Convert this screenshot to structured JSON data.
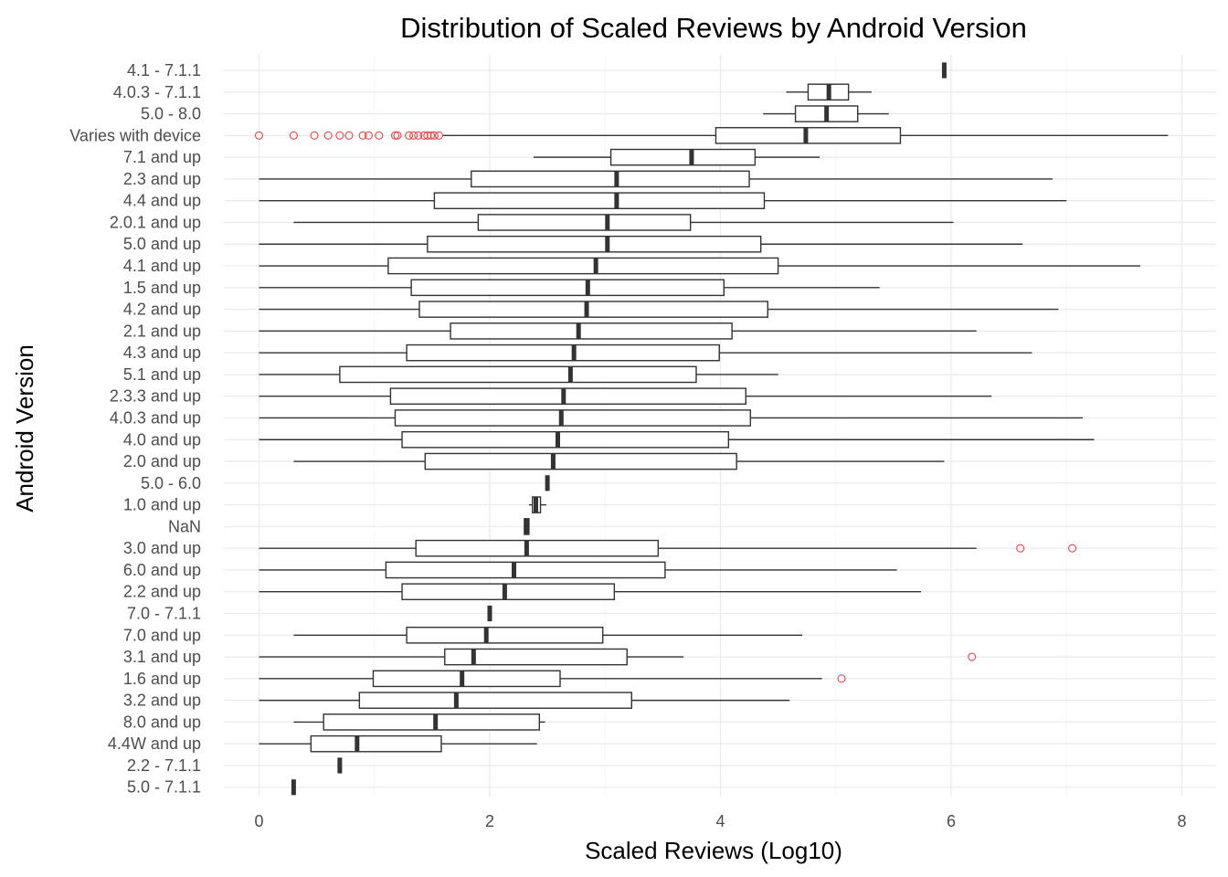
{
  "colors": {
    "outlier": "#e8474a",
    "box": "#333333",
    "grid": "#ebebeb",
    "tick_text": "#4d4d4d"
  },
  "chart_data": {
    "type": "boxplot",
    "orientation": "horizontal",
    "title": "Distribution of Scaled Reviews by Android Version",
    "xlabel": "Scaled Reviews (Log10)",
    "ylabel": "Android Version",
    "xlim": [
      -0.3,
      8.2
    ],
    "xticks": [
      0,
      2,
      4,
      6,
      8
    ],
    "grid": true,
    "categories": [
      {
        "name": "4.1 - 7.1.1",
        "min": 5.94,
        "q1": 5.94,
        "median": 5.94,
        "q3": 5.94,
        "max": 5.94,
        "outliers": []
      },
      {
        "name": "4.0.3 - 7.1.1",
        "min": 4.57,
        "q1": 4.76,
        "median": 4.94,
        "q3": 5.11,
        "max": 5.31,
        "outliers": []
      },
      {
        "name": "5.0 - 8.0",
        "min": 4.37,
        "q1": 4.65,
        "median": 4.92,
        "q3": 5.19,
        "max": 5.46,
        "outliers": []
      },
      {
        "name": "Varies with device",
        "min": 1.59,
        "q1": 3.96,
        "median": 4.74,
        "q3": 5.56,
        "max": 7.88,
        "outliers": [
          0,
          0.3,
          0.48,
          0.6,
          0.7,
          0.78,
          0.9,
          0.95,
          1.04,
          1.18,
          1.2,
          1.3,
          1.34,
          1.38,
          1.43,
          1.46,
          1.49,
          1.52,
          1.56
        ]
      },
      {
        "name": "7.1 and up",
        "min": 2.38,
        "q1": 3.05,
        "median": 3.75,
        "q3": 4.3,
        "max": 4.86,
        "outliers": []
      },
      {
        "name": "2.3 and up",
        "min": 0,
        "q1": 1.84,
        "median": 3.1,
        "q3": 4.25,
        "max": 6.88,
        "outliers": []
      },
      {
        "name": "4.4 and up",
        "min": 0,
        "q1": 1.52,
        "median": 3.1,
        "q3": 4.38,
        "max": 7.0,
        "outliers": []
      },
      {
        "name": "2.0.1 and up",
        "min": 0.3,
        "q1": 1.9,
        "median": 3.02,
        "q3": 3.74,
        "max": 6.02,
        "outliers": []
      },
      {
        "name": "5.0 and up",
        "min": 0,
        "q1": 1.46,
        "median": 3.02,
        "q3": 4.35,
        "max": 6.62,
        "outliers": []
      },
      {
        "name": "4.1 and up",
        "min": 0,
        "q1": 1.12,
        "median": 2.92,
        "q3": 4.5,
        "max": 7.64,
        "outliers": []
      },
      {
        "name": "1.5 and up",
        "min": 0,
        "q1": 1.32,
        "median": 2.85,
        "q3": 4.03,
        "max": 5.38,
        "outliers": []
      },
      {
        "name": "4.2 and up",
        "min": 0,
        "q1": 1.39,
        "median": 2.84,
        "q3": 4.41,
        "max": 6.93,
        "outliers": []
      },
      {
        "name": "2.1 and up",
        "min": 0,
        "q1": 1.66,
        "median": 2.77,
        "q3": 4.1,
        "max": 6.22,
        "outliers": []
      },
      {
        "name": "4.3 and up",
        "min": 0,
        "q1": 1.28,
        "median": 2.73,
        "q3": 3.99,
        "max": 6.7,
        "outliers": []
      },
      {
        "name": "5.1 and up",
        "min": 0,
        "q1": 0.7,
        "median": 2.7,
        "q3": 3.79,
        "max": 4.5,
        "outliers": []
      },
      {
        "name": "2.3.3 and up",
        "min": 0,
        "q1": 1.14,
        "median": 2.64,
        "q3": 4.22,
        "max": 6.35,
        "outliers": []
      },
      {
        "name": "4.0.3 and up",
        "min": 0,
        "q1": 1.18,
        "median": 2.62,
        "q3": 4.26,
        "max": 7.14,
        "outliers": []
      },
      {
        "name": "4.0 and up",
        "min": 0,
        "q1": 1.24,
        "median": 2.59,
        "q3": 4.07,
        "max": 7.24,
        "outliers": []
      },
      {
        "name": "2.0 and up",
        "min": 0.3,
        "q1": 1.44,
        "median": 2.55,
        "q3": 4.14,
        "max": 5.94,
        "outliers": []
      },
      {
        "name": "5.0 - 6.0",
        "min": 2.5,
        "q1": 2.5,
        "median": 2.5,
        "q3": 2.5,
        "max": 2.5,
        "outliers": []
      },
      {
        "name": "1.0 and up",
        "min": 2.34,
        "q1": 2.37,
        "median": 2.4,
        "q3": 2.44,
        "max": 2.49,
        "outliers": []
      },
      {
        "name": "NaN",
        "min": 2.3,
        "q1": 2.3,
        "median": 2.32,
        "q3": 2.34,
        "max": 2.34,
        "outliers": []
      },
      {
        "name": "3.0 and up",
        "min": 0,
        "q1": 1.36,
        "median": 2.32,
        "q3": 3.46,
        "max": 6.22,
        "outliers": [
          6.6,
          7.05
        ]
      },
      {
        "name": "6.0 and up",
        "min": 0,
        "q1": 1.1,
        "median": 2.21,
        "q3": 3.52,
        "max": 5.53,
        "outliers": []
      },
      {
        "name": "2.2 and up",
        "min": 0,
        "q1": 1.24,
        "median": 2.13,
        "q3": 3.08,
        "max": 5.74,
        "outliers": []
      },
      {
        "name": "7.0 - 7.1.1",
        "min": 2.0,
        "q1": 2.0,
        "median": 2.0,
        "q3": 2.0,
        "max": 2.0,
        "outliers": []
      },
      {
        "name": "7.0 and up",
        "min": 0.3,
        "q1": 1.28,
        "median": 1.97,
        "q3": 2.98,
        "max": 4.71,
        "outliers": []
      },
      {
        "name": "3.1 and up",
        "min": 0,
        "q1": 1.61,
        "median": 1.86,
        "q3": 3.19,
        "max": 3.68,
        "outliers": [
          6.18
        ]
      },
      {
        "name": "1.6 and up",
        "min": 0,
        "q1": 0.99,
        "median": 1.76,
        "q3": 2.61,
        "max": 4.88,
        "outliers": [
          5.05
        ]
      },
      {
        "name": "3.2 and up",
        "min": 0,
        "q1": 0.87,
        "median": 1.71,
        "q3": 3.23,
        "max": 4.6,
        "outliers": []
      },
      {
        "name": "8.0 and up",
        "min": 0.3,
        "q1": 0.56,
        "median": 1.53,
        "q3": 2.43,
        "max": 2.48,
        "outliers": []
      },
      {
        "name": "4.4W and up",
        "min": 0,
        "q1": 0.45,
        "median": 0.85,
        "q3": 1.58,
        "max": 2.41,
        "outliers": []
      },
      {
        "name": "2.2 - 7.1.1",
        "min": 0.7,
        "q1": 0.7,
        "median": 0.7,
        "q3": 0.7,
        "max": 0.7,
        "outliers": []
      },
      {
        "name": "5.0 - 7.1.1",
        "min": 0.3,
        "q1": 0.3,
        "median": 0.3,
        "q3": 0.3,
        "max": 0.3,
        "outliers": []
      }
    ]
  }
}
